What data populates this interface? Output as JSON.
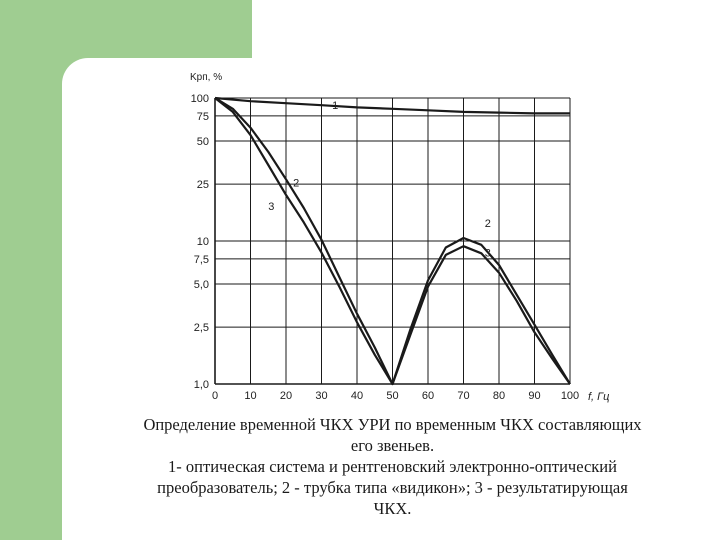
{
  "chart_data": {
    "type": "line",
    "y_axis_label": "Kрп, %",
    "x_axis_label": "f, Гц",
    "y_scale": "logarithmic",
    "x_ticks": [
      "0",
      "10",
      "20",
      "30",
      "40",
      "50",
      "60",
      "70",
      "80",
      "90",
      "100"
    ],
    "y_ticks": [
      "1,0",
      "2,5",
      "5,0",
      "7,5",
      "10",
      "25",
      "50",
      "75",
      "100"
    ],
    "grid": true,
    "series": [
      {
        "name": "1",
        "x": [
          0,
          10,
          20,
          30,
          40,
          50,
          60,
          70,
          80,
          90,
          100
        ],
        "y": [
          100,
          95,
          92,
          89,
          86,
          84,
          82,
          80,
          79,
          78,
          78
        ]
      },
      {
        "name": "2",
        "x": [
          0,
          5,
          10,
          15,
          20,
          25,
          30,
          35,
          40,
          45,
          50,
          55,
          60,
          65,
          70,
          75,
          80,
          85,
          90,
          95,
          100
        ],
        "y": [
          100,
          84,
          62,
          42,
          27,
          17,
          10.2,
          5.6,
          3.1,
          1.8,
          1.0,
          2.4,
          5.3,
          9.0,
          10.5,
          9.4,
          6.8,
          4.2,
          2.6,
          1.6,
          1.0
        ]
      },
      {
        "name": "3",
        "x": [
          0,
          5,
          10,
          15,
          20,
          25,
          30,
          35,
          40,
          45,
          50,
          55,
          60,
          65,
          70,
          75,
          80,
          85,
          90,
          95,
          100
        ],
        "y": [
          100,
          80,
          55,
          34,
          21,
          13.5,
          8.3,
          4.8,
          2.7,
          1.6,
          1.0,
          2.2,
          4.8,
          8.0,
          9.2,
          8.2,
          6.0,
          3.8,
          2.3,
          1.5,
          1.0
        ]
      }
    ],
    "curve_labels": [
      "1",
      "2",
      "3",
      "2",
      "3"
    ]
  },
  "caption": {
    "line1": "Определение временной ЧКХ УРИ по временным ЧКХ составляющих",
    "line2": "его звеньев.",
    "line3": "1- оптическая система и рентгеновский электронно-оптический",
    "line4": "преобразователь; 2 - трубка типа «видикон»; 3 - результатирующая",
    "line5": "ЧКХ."
  },
  "colors": {
    "green_block": "#9fcd91",
    "ink": "#1a1a1a"
  }
}
